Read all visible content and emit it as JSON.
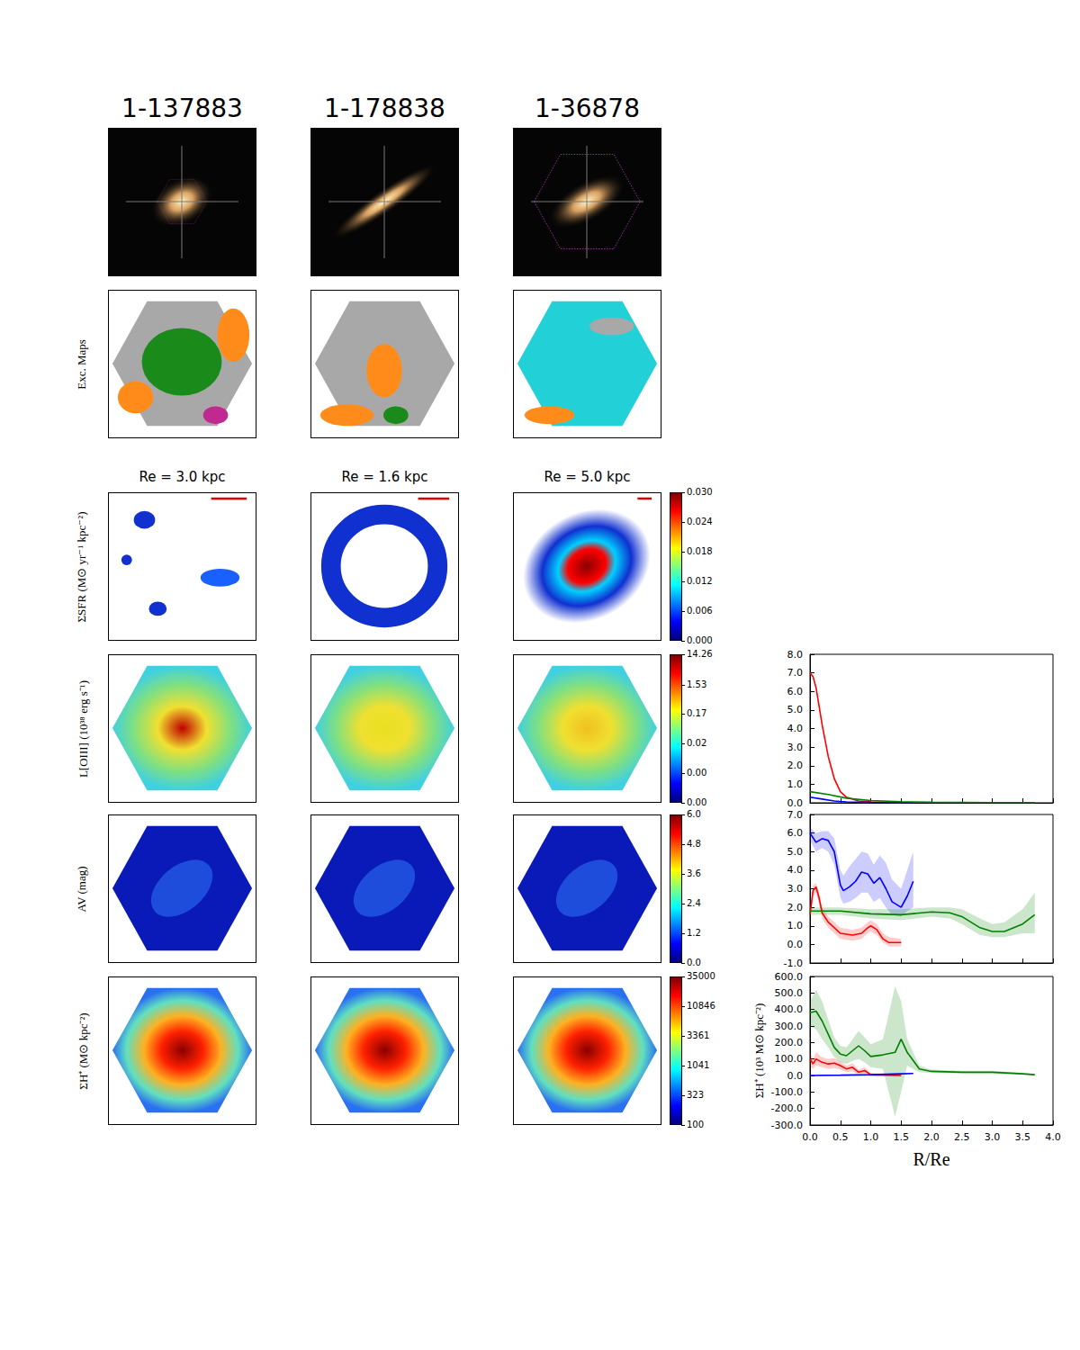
{
  "figure": {
    "columns": [
      {
        "id": "1-137883",
        "re_label": "Re = 3.0 kpc"
      },
      {
        "id": "1-178838",
        "re_label": "Re = 1.6 kpc"
      },
      {
        "id": "1-36878",
        "re_label": "Re = 5.0 kpc"
      }
    ],
    "rows": [
      {
        "label": "Exc. Maps"
      },
      {
        "label": "ΣSFR (M⊙ yr⁻¹ kpc⁻²)",
        "colorbar": {
          "range": [
            0,
            0.03
          ],
          "log": false,
          "ticks": [
            {
              "value": 0,
              "label": "0.000"
            },
            {
              "value": 0.006,
              "label": "0.006"
            },
            {
              "value": 0.012,
              "label": "0.012"
            },
            {
              "value": 0.018,
              "label": "0.018"
            },
            {
              "value": 0.024,
              "label": "0.024"
            },
            {
              "value": 0.03,
              "label": "0.030"
            }
          ]
        }
      },
      {
        "label": "L[OIII] (10³⁸ erg s⁻¹)",
        "colorbar": {
          "range": [
            0.00024,
            14.26
          ],
          "log": true,
          "ticks": [
            {
              "value": 0.00024,
              "label": "0.00"
            },
            {
              "value": 0.0022,
              "label": "0.00"
            },
            {
              "value": 0.019,
              "label": "0.02"
            },
            0.17,
            1.53,
            14.26
          ]
        }
      },
      {
        "label": "AV (mag)",
        "colorbar": {
          "range": [
            0,
            6
          ],
          "log": false,
          "ticks": [
            {
              "value": 0,
              "label": "0.0"
            },
            1.2,
            2.4,
            3.6,
            4.8,
            {
              "value": 6,
              "label": "6.0"
            }
          ]
        }
      },
      {
        "label": "ΣH⁺ (M⊙ kpc⁻²)",
        "colorbar": {
          "range": [
            100,
            35000
          ],
          "log": true,
          "ticks": [
            100,
            323,
            1041,
            3361,
            10846,
            35000
          ]
        }
      }
    ]
  },
  "chart_data": [
    {
      "type": "line",
      "xlim": [
        0,
        4
      ],
      "xticks": [
        {
          "value": 0,
          "label": "0.0"
        },
        0.5,
        {
          "value": 1,
          "label": "1.0"
        },
        1.5,
        {
          "value": 2,
          "label": "2.0"
        },
        2.5,
        {
          "value": 3,
          "label": "3.0"
        },
        3.5,
        {
          "value": 4,
          "label": "4.0"
        }
      ],
      "ylim": [
        0,
        8
      ],
      "yticks": [
        {
          "value": 0,
          "label": "0.0"
        },
        {
          "value": 1,
          "label": "1.0"
        },
        {
          "value": 2,
          "label": "2.0"
        },
        {
          "value": 3,
          "label": "3.0"
        },
        {
          "value": 4,
          "label": "4.0"
        },
        {
          "value": 5,
          "label": "5.0"
        },
        {
          "value": 6,
          "label": "6.0"
        },
        {
          "value": 7,
          "label": "7.0"
        },
        {
          "value": 8,
          "label": "8.0"
        }
      ],
      "tick_labels": "y",
      "grid": false,
      "series": [
        {
          "color": "#ff0000",
          "x": [
            0,
            0.05,
            0.1,
            0.15,
            0.2,
            0.3,
            0.4,
            0.5,
            0.6,
            0.8,
            1.0,
            1.5
          ],
          "values": [
            7.0,
            6.8,
            6.2,
            5.2,
            4.2,
            2.5,
            1.3,
            0.6,
            0.3,
            0.1,
            0.05,
            0.02
          ]
        },
        {
          "color": "#0000ff",
          "x": [
            0,
            0.2,
            0.4,
            0.6,
            1.0,
            1.7
          ],
          "values": [
            0.3,
            0.2,
            0.1,
            0.05,
            0.02,
            0.01
          ]
        },
        {
          "color": "#008000",
          "x": [
            0,
            0.3,
            0.6,
            1.0,
            1.5,
            2.0,
            3.0,
            3.7
          ],
          "values": [
            0.6,
            0.45,
            0.25,
            0.12,
            0.06,
            0.03,
            0.01,
            0.01
          ]
        }
      ]
    },
    {
      "type": "line",
      "xlim": [
        0,
        4
      ],
      "xticks": [
        {
          "value": 0,
          "label": "0.0"
        },
        0.5,
        {
          "value": 1,
          "label": "1.0"
        },
        1.5,
        {
          "value": 2,
          "label": "2.0"
        },
        2.5,
        {
          "value": 3,
          "label": "3.0"
        },
        3.5,
        {
          "value": 4,
          "label": "4.0"
        }
      ],
      "ylim": [
        -1,
        7
      ],
      "yticks": [
        {
          "value": -1,
          "label": "-1.0"
        },
        {
          "value": 0,
          "label": "0.0"
        },
        {
          "value": 1,
          "label": "1.0"
        },
        {
          "value": 2,
          "label": "2.0"
        },
        {
          "value": 3,
          "label": "3.0"
        },
        {
          "value": 4,
          "label": "4.0"
        },
        {
          "value": 5,
          "label": "5.0"
        },
        {
          "value": 6,
          "label": "6.0"
        },
        {
          "value": 7,
          "label": "7.0"
        }
      ],
      "tick_labels": "y",
      "grid": false,
      "series": [
        {
          "color": "#0000ff",
          "x": [
            0,
            0.1,
            0.2,
            0.3,
            0.4,
            0.5,
            0.55,
            0.65,
            0.75,
            0.85,
            0.95,
            1.05,
            1.15,
            1.25,
            1.35,
            1.5,
            1.6,
            1.7
          ],
          "values": [
            6.0,
            5.5,
            5.7,
            5.6,
            5.0,
            3.2,
            2.9,
            3.1,
            3.4,
            3.9,
            3.8,
            3.3,
            3.6,
            3.0,
            2.3,
            2.0,
            2.6,
            3.4
          ],
          "lower": [
            5.6,
            5.0,
            5.2,
            5.0,
            4.3,
            2.5,
            2.2,
            2.3,
            2.5,
            2.8,
            2.8,
            2.3,
            2.5,
            2.0,
            1.6,
            1.5,
            1.8,
            2.0
          ],
          "upper": [
            6.3,
            6.0,
            6.1,
            6.1,
            5.7,
            4.0,
            3.7,
            4.2,
            4.6,
            5.0,
            4.9,
            4.3,
            4.8,
            4.4,
            3.5,
            3.0,
            4.0,
            5.0
          ]
        },
        {
          "color": "#ff0000",
          "x": [
            0,
            0.05,
            0.1,
            0.15,
            0.2,
            0.3,
            0.5,
            0.7,
            0.85,
            0.95,
            1.0,
            1.1,
            1.2,
            1.3,
            1.5
          ],
          "values": [
            1.6,
            2.9,
            3.1,
            2.5,
            1.7,
            1.2,
            0.6,
            0.5,
            0.6,
            0.9,
            1.0,
            0.8,
            0.3,
            0.1,
            0.1
          ],
          "lower": [
            1.4,
            2.6,
            2.8,
            2.2,
            1.4,
            0.9,
            0.3,
            0.2,
            0.3,
            0.6,
            0.7,
            0.5,
            0.1,
            -0.1,
            -0.1
          ],
          "upper": [
            1.8,
            3.2,
            3.3,
            2.8,
            2.0,
            1.5,
            0.9,
            0.8,
            0.9,
            1.2,
            1.3,
            1.1,
            0.6,
            0.4,
            0.3
          ]
        },
        {
          "color": "#008000",
          "x": [
            0,
            0.5,
            1.0,
            1.5,
            2.0,
            2.3,
            2.5,
            2.8,
            3.0,
            3.2,
            3.5,
            3.7
          ],
          "values": [
            1.8,
            1.8,
            1.65,
            1.6,
            1.75,
            1.7,
            1.5,
            0.9,
            0.7,
            0.7,
            1.1,
            1.6
          ],
          "lower": [
            1.6,
            1.6,
            1.4,
            1.3,
            1.5,
            1.4,
            1.1,
            0.5,
            0.4,
            0.4,
            0.6,
            0.6
          ],
          "upper": [
            2.0,
            2.0,
            1.9,
            1.9,
            2.0,
            2.0,
            1.9,
            1.4,
            1.1,
            1.2,
            1.9,
            2.8
          ]
        }
      ]
    },
    {
      "type": "line",
      "x_label": "R/Re",
      "y_label": "ΣH⁺ (10³ M⊙ kpc⁻²)",
      "xlim": [
        0,
        4
      ],
      "xticks": [
        {
          "value": 0,
          "label": "0.0"
        },
        0.5,
        {
          "value": 1,
          "label": "1.0"
        },
        1.5,
        {
          "value": 2,
          "label": "2.0"
        },
        2.5,
        {
          "value": 3,
          "label": "3.0"
        },
        3.5,
        {
          "value": 4,
          "label": "4.0"
        }
      ],
      "ylim": [
        -300,
        600
      ],
      "yticks": [
        {
          "value": -300,
          "label": "-300.0"
        },
        {
          "value": -200,
          "label": "-200.0"
        },
        {
          "value": -100,
          "label": "-100.0"
        },
        {
          "value": 0,
          "label": "0.0"
        },
        {
          "value": 100,
          "label": "100.0"
        },
        {
          "value": 200,
          "label": "200.0"
        },
        {
          "value": 300,
          "label": "300.0"
        },
        {
          "value": 400,
          "label": "400.0"
        },
        {
          "value": 500,
          "label": "500.0"
        },
        {
          "value": 600,
          "label": "600.0"
        }
      ],
      "grid": false,
      "series": [
        {
          "color": "#008000",
          "x": [
            0,
            0.1,
            0.2,
            0.3,
            0.4,
            0.5,
            0.6,
            0.7,
            0.8,
            0.9,
            1.0,
            1.2,
            1.4,
            1.5,
            1.6,
            1.8,
            2.0,
            2.5,
            3.0,
            3.5,
            3.7
          ],
          "values": [
            380,
            390,
            330,
            250,
            170,
            130,
            120,
            150,
            180,
            150,
            115,
            125,
            140,
            220,
            140,
            40,
            25,
            20,
            20,
            10,
            5
          ],
          "lower": [
            300,
            280,
            220,
            170,
            110,
            80,
            70,
            90,
            100,
            80,
            50,
            40,
            -250,
            -100,
            60,
            20,
            15,
            12,
            12,
            5,
            0
          ],
          "upper": [
            450,
            520,
            450,
            340,
            230,
            180,
            170,
            220,
            270,
            230,
            190,
            220,
            540,
            450,
            220,
            60,
            35,
            28,
            28,
            16,
            10
          ]
        },
        {
          "color": "#ff0000",
          "x": [
            0,
            0.05,
            0.1,
            0.2,
            0.3,
            0.4,
            0.5,
            0.6,
            0.7,
            0.8,
            0.9,
            1.0,
            1.5
          ],
          "values": [
            100,
            70,
            100,
            80,
            70,
            75,
            60,
            40,
            50,
            20,
            30,
            5,
            0
          ],
          "lower": [
            60,
            40,
            60,
            50,
            40,
            45,
            35,
            20,
            25,
            5,
            10,
            -5,
            -5
          ],
          "upper": [
            140,
            100,
            140,
            110,
            100,
            105,
            85,
            60,
            75,
            35,
            50,
            15,
            5
          ]
        },
        {
          "color": "#0000ff",
          "x": [
            0,
            0.5,
            1.0,
            1.5,
            1.7
          ],
          "values": [
            0,
            2,
            5,
            10,
            12
          ]
        }
      ]
    }
  ]
}
